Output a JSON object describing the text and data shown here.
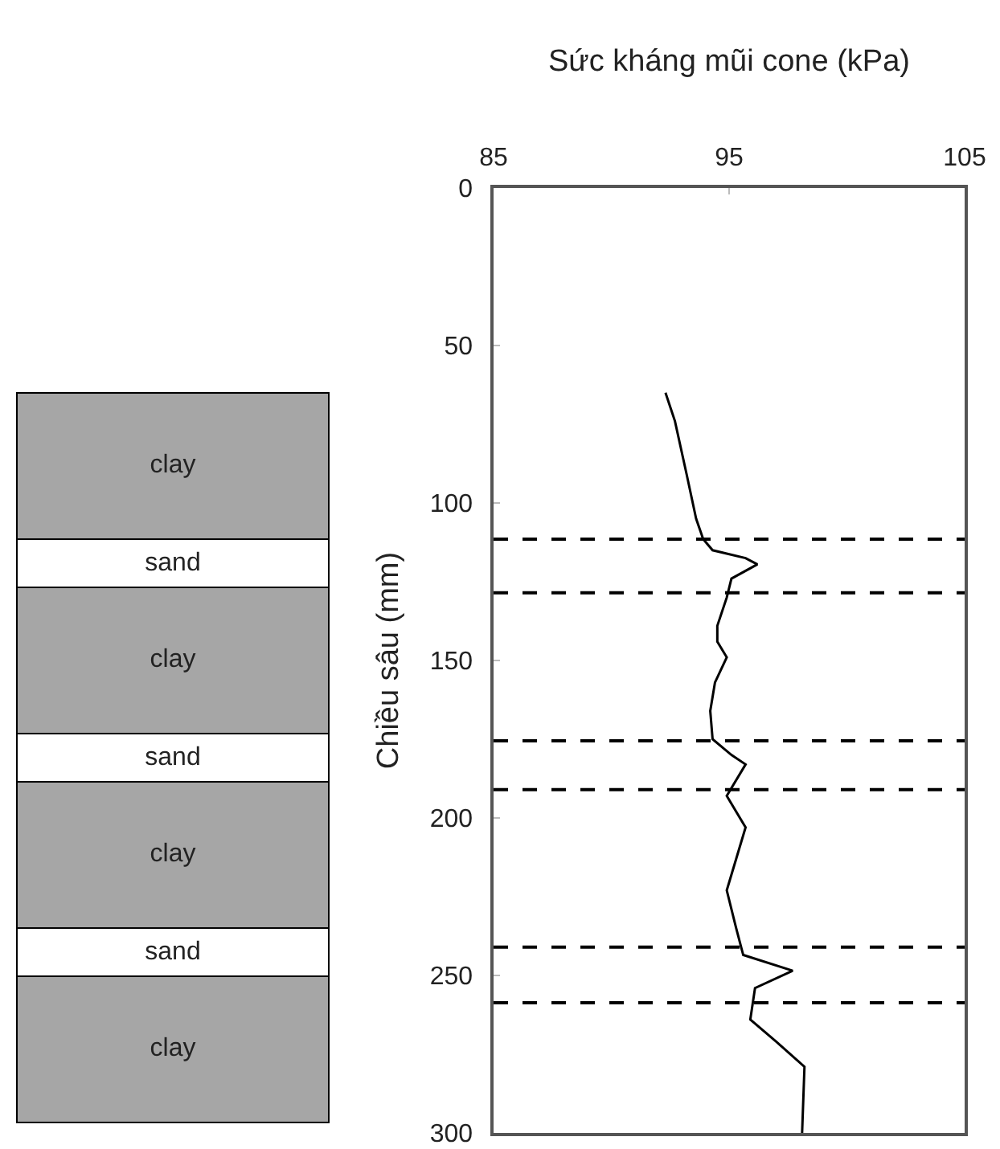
{
  "chart_data": {
    "type": "line",
    "xlabel": "Sức kháng mũi cone (kPa)",
    "ylabel": "Chiều sâu (mm)",
    "xlim": [
      85,
      105
    ],
    "xticks": [
      85,
      95,
      105
    ],
    "ylim": [
      300,
      0
    ],
    "yticks": [
      0,
      50,
      100,
      150,
      200,
      250,
      300
    ],
    "grid": false,
    "marker": "none",
    "line_style": "solid",
    "series": [
      {
        "color": "#000000",
        "x": [
          92.3,
          92.7,
          93.2,
          93.6,
          93.9,
          94.3,
          95.7,
          96.2,
          95.1,
          94.9,
          94.5,
          94.5,
          94.9,
          94.4,
          94.2,
          94.3,
          95.1,
          95.7,
          94.9,
          95.7,
          95.3,
          94.9,
          95.3,
          95.6,
          97.7,
          96.1,
          95.9,
          97.0,
          98.2,
          98.1
        ],
        "values": [
          65,
          74,
          91,
          105,
          111.5,
          115,
          117.5,
          119.5,
          124,
          130,
          139,
          144,
          149,
          157,
          166,
          175,
          180,
          183,
          193,
          203,
          213,
          223,
          235,
          243.5,
          248.5,
          254,
          264,
          271,
          279,
          300
        ]
      }
    ],
    "ref_lines": [
      {
        "axis": "y",
        "value": 111.5,
        "color": "#000000",
        "line_style": "dashed"
      },
      {
        "axis": "y",
        "value": 128.5,
        "color": "#000000",
        "line_style": "dashed"
      },
      {
        "axis": "y",
        "value": 175.5,
        "color": "#000000",
        "line_style": "dashed"
      },
      {
        "axis": "y",
        "value": 191,
        "color": "#000000",
        "line_style": "dashed"
      },
      {
        "axis": "y",
        "value": 241,
        "color": "#000000",
        "line_style": "dashed"
      },
      {
        "axis": "y",
        "value": 258.7,
        "color": "#000000",
        "line_style": "dashed"
      }
    ],
    "annotations": [
      "clay",
      "sand",
      "clay",
      "sand",
      "clay",
      "sand",
      "clay"
    ]
  }
}
